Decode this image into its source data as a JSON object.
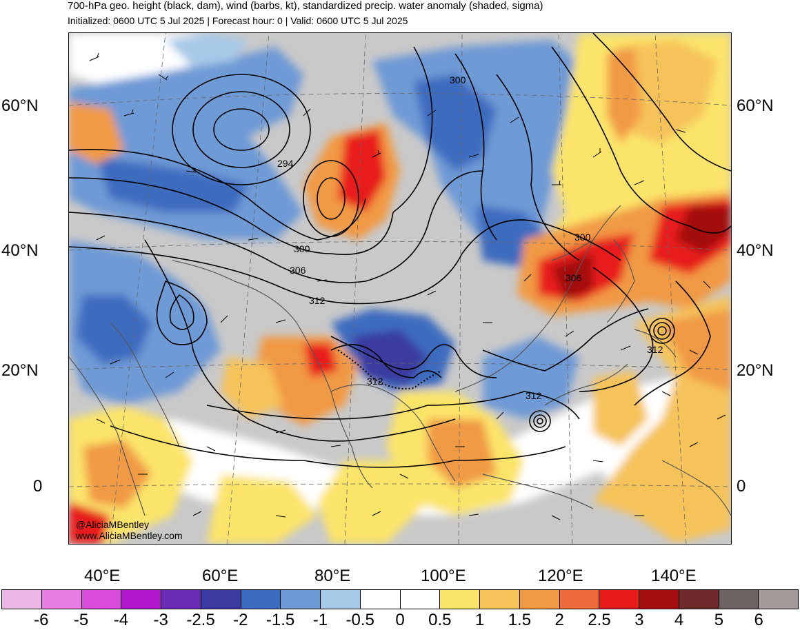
{
  "header": {
    "title": "700-hPa geo. height (black, dam), wind (barbs, kt), standardized precip. water anomaly (shaded, sigma)",
    "subtitle": "Initialized: 0600 UTC 5 Jul 2025 | Forecast hour: 0 | Valid: 0600 UTC 5 Jul 2025"
  },
  "axes": {
    "lat_labels": [
      "60°N",
      "40°N",
      "20°N",
      "0"
    ],
    "lon_labels": [
      "40°E",
      "60°E",
      "80°E",
      "100°E",
      "120°E",
      "140°E"
    ]
  },
  "contour_labels": [
    "300",
    "294",
    "300",
    "306",
    "312",
    "312",
    "312",
    "300",
    "306",
    "312"
  ],
  "credit": {
    "line1": "@AliciaMBentley",
    "line2": "www.AliciaMBentley.com"
  },
  "colorbar": {
    "colors": [
      "#ebb8e8",
      "#e77ee3",
      "#d94bd9",
      "#b319cc",
      "#6b2bb3",
      "#3a3aa0",
      "#3c6cbf",
      "#6e9ad6",
      "#a7c9e8",
      "#ffffff",
      "#ffffff",
      "#fbe46a",
      "#f6c35a",
      "#f19a45",
      "#ee6a3a",
      "#e81b1b",
      "#a30e0e",
      "#6e2a2a",
      "#6e6262",
      "#a59a9a"
    ],
    "labels": [
      "-6",
      "-5",
      "-4",
      "-3",
      "-2.5",
      "-2",
      "-1.5",
      "-1",
      "-0.5",
      "0",
      "0.5",
      "1",
      "1.5",
      "2",
      "2.5",
      "3",
      "4",
      "5",
      "6"
    ]
  }
}
